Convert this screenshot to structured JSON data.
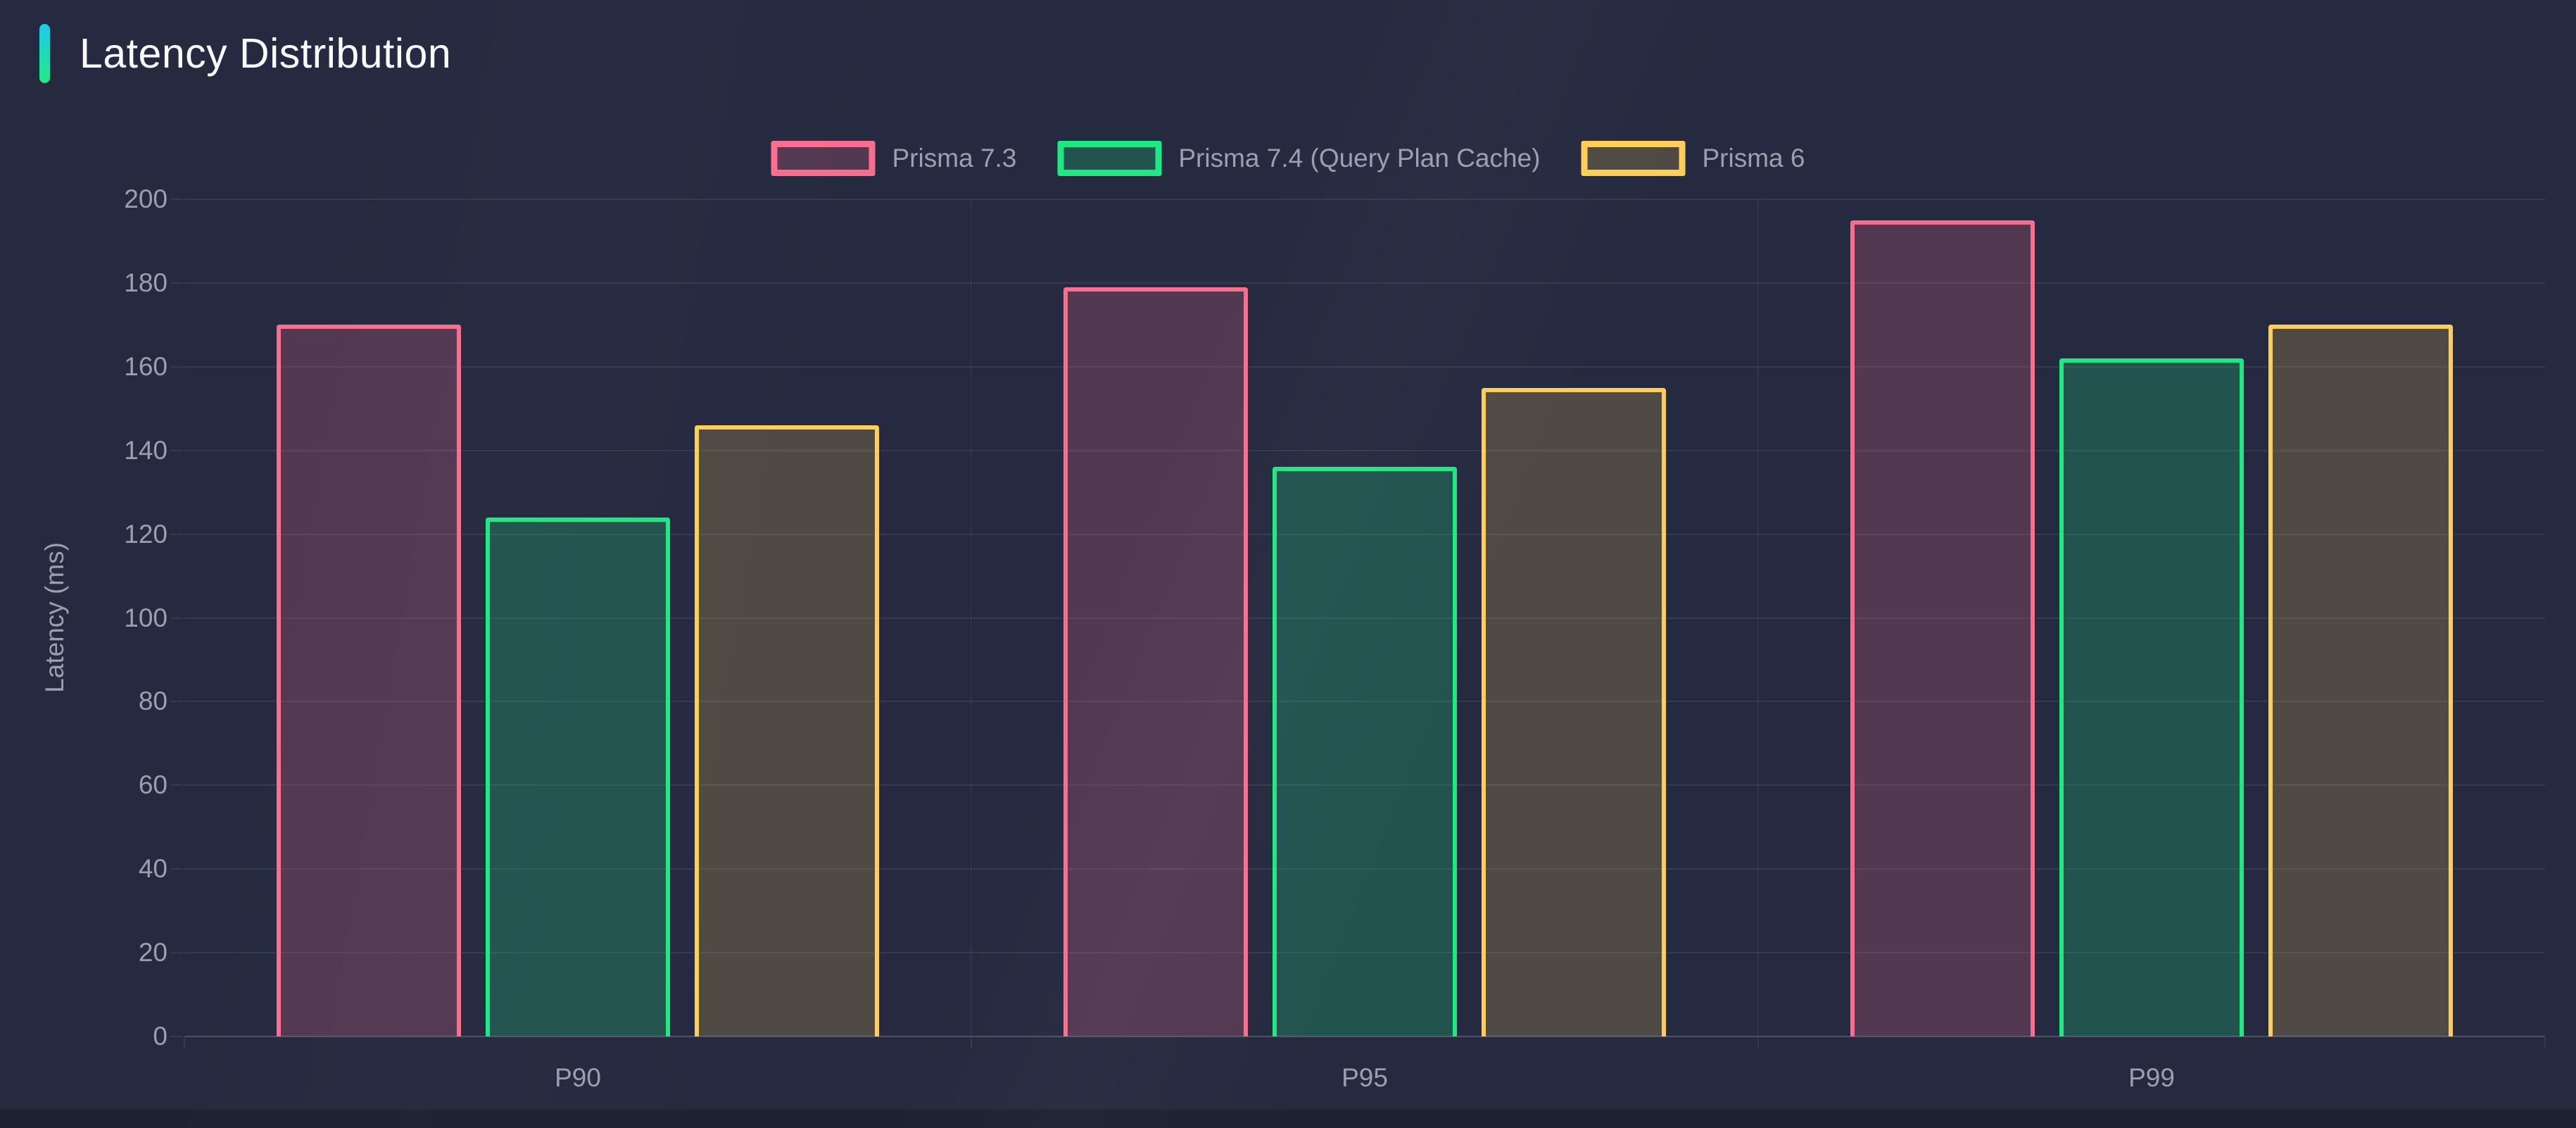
{
  "header": {
    "title": "Latency Distribution"
  },
  "chart_data": {
    "type": "bar",
    "title": "Latency Distribution",
    "categories": [
      "P90",
      "P95",
      "P99"
    ],
    "series": [
      {
        "name": "Prisma 7.3",
        "color": "#FB6D8D",
        "fill": "rgba(251,109,141,0.22)",
        "values": [
          170,
          179,
          195
        ]
      },
      {
        "name": "Prisma 7.4 (Query Plan Cache)",
        "color": "#1DE982",
        "fill": "rgba(29,233,130,0.22)",
        "values": [
          124,
          136,
          162
        ]
      },
      {
        "name": "Prisma 6",
        "color": "#FFCE56",
        "fill": "rgba(255,206,86,0.20)",
        "values": [
          146,
          155,
          170
        ]
      }
    ],
    "xlabel": "",
    "ylabel": "Latency (ms)",
    "ylim": [
      0,
      200
    ],
    "ytick_step": 20,
    "grid": true,
    "legend_position": "top"
  },
  "ui": {
    "colors": {
      "background": "#252A40",
      "surface_bottom": "#1D2132",
      "accent_cyan": "#1FC9EE",
      "accent_green": "#23EB84",
      "title_text": "#FAFBFD",
      "muted_text": "#9BA0AC",
      "grid_line": "rgba(255,255,255,0.07)",
      "axis_line": "rgba(255,255,255,0.18)"
    }
  }
}
